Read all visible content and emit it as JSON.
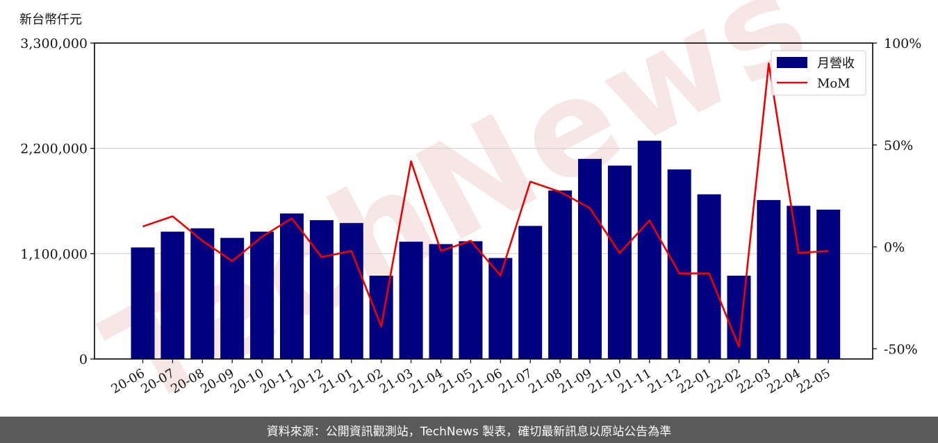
{
  "chart_data": {
    "type": "bar",
    "y_unit_label": "新台幣仟元",
    "categories": [
      "20-06",
      "20-07",
      "20-08",
      "20-09",
      "20-10",
      "20-11",
      "20-12",
      "21-01",
      "21-02",
      "21-03",
      "21-04",
      "21-05",
      "21-06",
      "21-07",
      "21-08",
      "21-09",
      "21-10",
      "21-11",
      "21-12",
      "22-01",
      "22-02",
      "22-03",
      "22-04",
      "22-05"
    ],
    "series": [
      {
        "name": "月營收",
        "kind": "bar",
        "axis": "left",
        "color": "#000080",
        "values": [
          1165000,
          1330000,
          1365000,
          1265000,
          1330000,
          1520000,
          1450000,
          1420000,
          870000,
          1225000,
          1200000,
          1230000,
          1055000,
          1390000,
          1760000,
          2090000,
          2020000,
          2280000,
          1980000,
          1720000,
          870000,
          1660000,
          1600000,
          1560000
        ]
      },
      {
        "name": "MoM",
        "kind": "line",
        "axis": "right",
        "color": "#ee0000",
        "values": [
          10,
          15,
          3,
          -7,
          5,
          14,
          -5,
          -2,
          -39,
          42,
          -2,
          3,
          -14,
          32,
          27,
          19,
          -3,
          13,
          -13,
          -13,
          -49,
          90,
          -3,
          -2
        ]
      }
    ],
    "y_left": {
      "ylim": [
        0,
        3300000
      ],
      "ticks": [
        "0",
        "1,100,000",
        "2,200,000",
        "3,300,000"
      ],
      "tick_values": [
        0,
        1100000,
        2200000,
        3300000
      ]
    },
    "y_right": {
      "ylim": [
        -55,
        100
      ],
      "ticks": [
        "-50%",
        "0%",
        "50%",
        "100%"
      ],
      "tick_values": [
        -50,
        0,
        50,
        100
      ]
    },
    "grid": "horizontal",
    "legend": "top-right",
    "watermark": "TechNews"
  },
  "footer": {
    "source": "資料來源：公開資訊觀測站，TechNews 製表，確切最新訊息以原站公告為準"
  }
}
